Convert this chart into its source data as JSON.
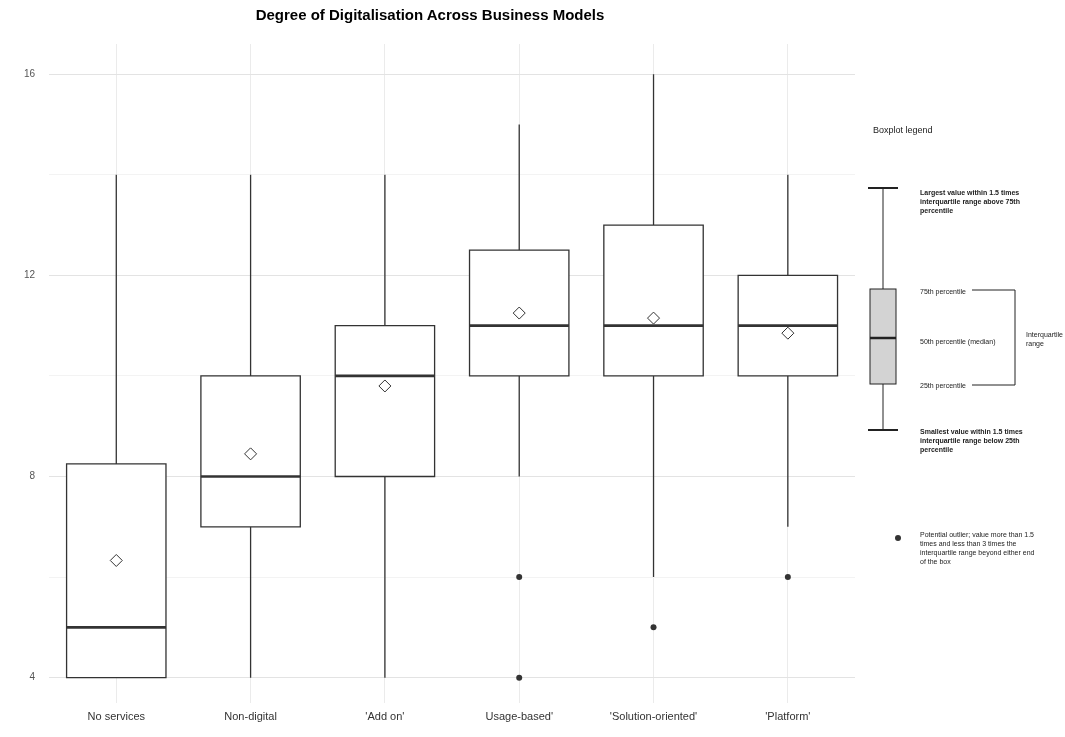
{
  "chart_data": {
    "type": "box",
    "title": "Degree of Digitalisation Across Business Models",
    "categories": [
      "No services",
      "Non-digital",
      "'Add on'",
      "Usage-based'",
      "'Solution-oriented'",
      "'Platform'"
    ],
    "boxes": [
      {
        "low": 4,
        "q1": 4,
        "median": 5,
        "q3": 8.25,
        "high": 14,
        "mean": 6.33
      },
      {
        "low": 4,
        "q1": 7,
        "median": 8,
        "q3": 10,
        "high": 14,
        "mean": 8.45
      },
      {
        "low": 4,
        "q1": 8,
        "median": 10,
        "q3": 11,
        "high": 14,
        "mean": 9.8
      },
      {
        "low": 8,
        "q1": 10,
        "median": 11,
        "q3": 12.5,
        "high": 15,
        "mean": 11.25,
        "outliers": [
          6,
          4
        ]
      },
      {
        "low": 6,
        "q1": 10,
        "median": 11,
        "q3": 13,
        "high": 16,
        "mean": 11.15,
        "outliers": [
          5
        ]
      },
      {
        "low": 7,
        "q1": 10,
        "median": 11,
        "q3": 12,
        "high": 14,
        "mean": 10.85,
        "outliers": [
          6
        ]
      }
    ],
    "color": "#ffffff",
    "ylim": [
      3.5,
      16.6
    ],
    "yticks": [
      4,
      {
        "value": 6,
        "label": null
      },
      8,
      {
        "value": 10,
        "label": null
      },
      12,
      {
        "value": 14,
        "label": null
      },
      16
    ],
    "grid": true,
    "legend": false,
    "annotations": [
      "Boxplot legend",
      "Largest value within 1.5 times interquartile range above 75th percentile",
      "75th percentile",
      "50th percentile (median)",
      "25th percentile",
      "Interquartile range",
      "Smallest value within 1.5 times interquartile range below 25th percentile",
      "Potential outlier; value more than 1.5 times and less than 3 times the interquartile range beyond either end of the box"
    ]
  }
}
